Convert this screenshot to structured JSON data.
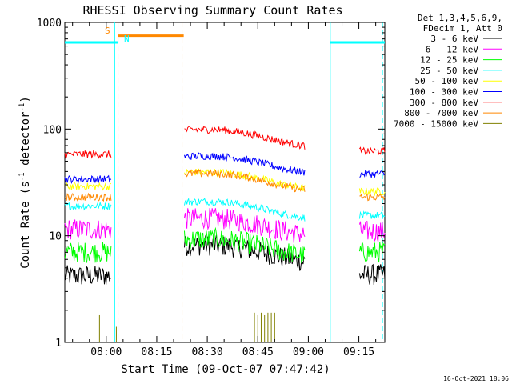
{
  "chart_data": {
    "type": "line",
    "title": "RHESSI Observing Summary Count Rates",
    "xlabel": "Start Time (09-Oct-07 07:47:42)",
    "ylabel_main": "Count Rate (s",
    "ylabel_sup1": "-1",
    "ylabel_mid": " detector",
    "ylabel_sup2": "-1",
    "ylabel_end": ")",
    "yscale": "log",
    "ylim": [
      1,
      1000
    ],
    "y_ticks": [
      {
        "v": 1,
        "label": "1"
      },
      {
        "v": 10,
        "label": "10"
      },
      {
        "v": 100,
        "label": "100"
      },
      {
        "v": 1000,
        "label": "1000"
      }
    ],
    "xlim_min": [
      -12.3,
      82.7
    ],
    "x_ticks": [
      {
        "m": 0,
        "label": "08:00"
      },
      {
        "m": 15,
        "label": "08:15"
      },
      {
        "m": 30,
        "label": "08:30"
      },
      {
        "m": 45,
        "label": "08:45"
      },
      {
        "m": 60,
        "label": "09:00"
      },
      {
        "m": 75,
        "label": "09:15"
      }
    ],
    "legend_header": [
      "Det 1,3,4,5,6,9,",
      "FDecim 1, Att 0"
    ],
    "series": [
      {
        "name": "3 - 6 keV",
        "color": "#000000",
        "levels": {
          "a": 4.2,
          "b": 7.0,
          "c": 4.3
        }
      },
      {
        "name": "6 - 12 keV",
        "color": "#ff00ff",
        "levels": {
          "a": 11.5,
          "b": 12.5,
          "c": 11.0
        }
      },
      {
        "name": "12 - 25 keV",
        "color": "#00ff00",
        "levels": {
          "a": 7.0,
          "b": 8.0,
          "c": 7.0
        }
      },
      {
        "name": "25 - 50 keV",
        "color": "#00ffff",
        "levels": {
          "a": 19.0,
          "b": 18.0,
          "c": 15.5
        }
      },
      {
        "name": "50 - 100 keV",
        "color": "#ffff00",
        "levels": {
          "a": 29.0,
          "b": 34.0,
          "c": 26.0
        }
      },
      {
        "name": "100 - 300 keV",
        "color": "#0000ff",
        "levels": {
          "a": 34.0,
          "b": 48.0,
          "c": 38.0
        }
      },
      {
        "name": "300 - 800 keV",
        "color": "#ff0000",
        "levels": {
          "a": 58.0,
          "b": 85.0,
          "c": 62.0
        }
      },
      {
        "name": "800 - 7000 keV",
        "color": "#ff8800",
        "levels": {
          "a": 23.0,
          "b": 33.0,
          "c": 23.0
        }
      },
      {
        "name": "7000 - 15000 keV",
        "color": "#808000",
        "levels": {
          "a": 1.0,
          "b": 1.0,
          "c": 1.0
        }
      }
    ],
    "gaps_min": [
      [
        1.5,
        23.0
      ],
      [
        59.0,
        75.0
      ]
    ],
    "flag_bars": [
      {
        "label": "S",
        "color": "#ff8800",
        "start": 3.5,
        "end": 23.0,
        "value": 750
      },
      {
        "label": "N",
        "color": "#00ffff",
        "start": -12.3,
        "end": 3.5,
        "value": 650
      },
      {
        "label": "",
        "color": "#00ffff",
        "start": 66.5,
        "end": 82.7,
        "value": 650
      }
    ],
    "vlines": [
      {
        "m": 2.5,
        "color": "#00ffff",
        "style": "solid"
      },
      {
        "m": 3.5,
        "color": "#ff8800",
        "style": "dashed"
      },
      {
        "m": 22.5,
        "color": "#ff8800",
        "style": "dashed"
      },
      {
        "m": 66.5,
        "color": "#00ffff",
        "style": "solid"
      },
      {
        "m": 82.0,
        "color": "#00ffff",
        "style": "dashed"
      }
    ],
    "flag_S": "S",
    "flag_N": "N",
    "datestamp": "16-Oct-2021 18:06"
  }
}
